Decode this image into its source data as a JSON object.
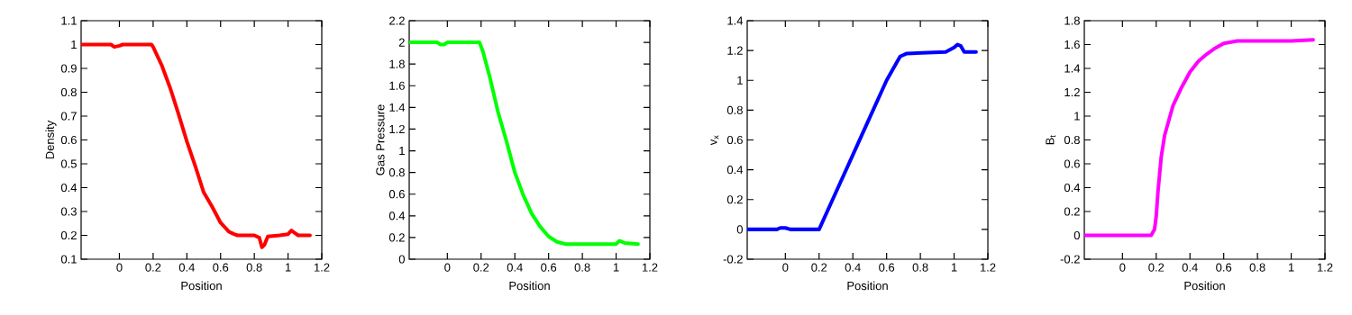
{
  "chart_data": [
    {
      "type": "line",
      "xlabel": "Position",
      "ylabel": "Density",
      "xlim": [
        -0.227,
        1.2
      ],
      "ylim": [
        0.1,
        1.1
      ],
      "xticks": [
        0,
        0.2,
        0.4,
        0.6,
        0.8,
        1,
        1.2
      ],
      "yticks": [
        0.1,
        0.2,
        0.3,
        0.4,
        0.5,
        0.6,
        0.7,
        0.8,
        0.9,
        1,
        1.1
      ],
      "line_style": "solid",
      "marker": "none",
      "grid": false,
      "series": [
        {
          "color": "#ff0000",
          "x": [
            -0.227,
            -0.05,
            -0.03,
            0,
            0.02,
            0.19,
            0.2,
            0.25,
            0.3,
            0.35,
            0.4,
            0.45,
            0.5,
            0.55,
            0.6,
            0.65,
            0.68,
            0.7,
            0.8,
            0.83,
            0.845,
            0.86,
            0.88,
            0.95,
            1.0,
            1.02,
            1.04,
            1.06,
            1.13
          ],
          "values": [
            1,
            1,
            0.99,
            0.995,
            1,
            1,
            0.99,
            0.915,
            0.82,
            0.71,
            0.594,
            0.49,
            0.38,
            0.32,
            0.253,
            0.215,
            0.205,
            0.2,
            0.2,
            0.19,
            0.15,
            0.16,
            0.195,
            0.2,
            0.205,
            0.22,
            0.21,
            0.2,
            0.2
          ]
        }
      ]
    },
    {
      "type": "line",
      "xlabel": "Position",
      "ylabel": "Gas Pressure",
      "xlim": [
        -0.226,
        1.2
      ],
      "ylim": [
        0,
        2.2
      ],
      "xticks": [
        0,
        0.2,
        0.4,
        0.6,
        0.8,
        1,
        1.2
      ],
      "yticks": [
        0,
        0.2,
        0.4,
        0.6,
        0.8,
        1,
        1.2,
        1.4,
        1.6,
        1.8,
        2,
        2.2
      ],
      "line_style": "solid",
      "marker": "none",
      "grid": false,
      "series": [
        {
          "color": "#00ff00",
          "x": [
            -0.226,
            -0.06,
            -0.04,
            -0.02,
            0,
            0.19,
            0.21,
            0.25,
            0.3,
            0.35,
            0.4,
            0.45,
            0.5,
            0.55,
            0.6,
            0.65,
            0.7,
            1.0,
            1.02,
            1.05,
            1.13
          ],
          "values": [
            2,
            2,
            1.98,
            1.98,
            2,
            2,
            1.92,
            1.69,
            1.36,
            1.09,
            0.8,
            0.59,
            0.42,
            0.3,
            0.21,
            0.16,
            0.14,
            0.14,
            0.17,
            0.15,
            0.14
          ]
        }
      ]
    },
    {
      "type": "line",
      "xlabel": "Position",
      "ylabel": "v$_{x}$",
      "xlim": [
        -0.226,
        1.2
      ],
      "ylim": [
        -0.2,
        1.4
      ],
      "xticks": [
        0,
        0.2,
        0.4,
        0.6,
        0.8,
        1,
        1.2
      ],
      "yticks": [
        -0.2,
        0,
        0.2,
        0.4,
        0.6,
        0.8,
        1,
        1.2,
        1.4
      ],
      "line_style": "solid",
      "marker": "none",
      "grid": false,
      "series": [
        {
          "color": "#0000ff",
          "x": [
            -0.226,
            -0.05,
            -0.03,
            0,
            0.03,
            0.19,
            0.2,
            0.3,
            0.4,
            0.5,
            0.6,
            0.68,
            0.72,
            0.95,
            1.0,
            1.02,
            1.04,
            1.06,
            1.13
          ],
          "values": [
            0,
            0,
            0.01,
            0.01,
            0,
            0,
            0,
            0.25,
            0.5,
            0.75,
            1.0,
            1.16,
            1.18,
            1.19,
            1.22,
            1.24,
            1.23,
            1.19,
            1.19
          ]
        }
      ]
    },
    {
      "type": "line",
      "xlabel": "Position",
      "ylabel": "B$_{t}$",
      "xlim": [
        -0.226,
        1.2
      ],
      "ylim": [
        -0.2,
        1.8
      ],
      "xticks": [
        0,
        0.2,
        0.4,
        0.6,
        0.8,
        1,
        1.2
      ],
      "yticks": [
        -0.2,
        0,
        0.2,
        0.4,
        0.6,
        0.8,
        1,
        1.2,
        1.4,
        1.6,
        1.8
      ],
      "line_style": "solid",
      "marker": "none",
      "grid": false,
      "series": [
        {
          "color": "#ff00ff",
          "x": [
            -0.226,
            0.17,
            0.19,
            0.2,
            0.21,
            0.23,
            0.25,
            0.3,
            0.35,
            0.4,
            0.45,
            0.5,
            0.55,
            0.6,
            0.68,
            1.0,
            1.13
          ],
          "values": [
            0,
            0,
            0.05,
            0.16,
            0.36,
            0.66,
            0.84,
            1.09,
            1.24,
            1.37,
            1.46,
            1.52,
            1.57,
            1.61,
            1.63,
            1.63,
            1.64
          ]
        }
      ]
    }
  ]
}
